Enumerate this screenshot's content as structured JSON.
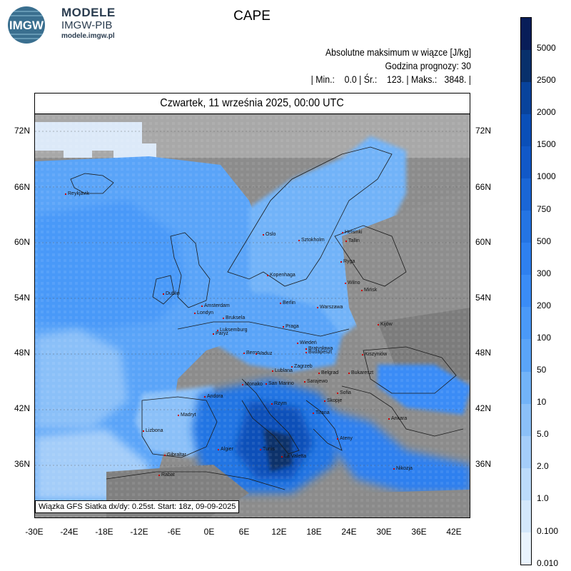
{
  "logo": {
    "badge": "IMGW",
    "name": "MODELE",
    "org": "IMGW-PIB",
    "site": "modele.imgw.pl"
  },
  "title": "CAPE",
  "meta": {
    "line1": "Absolutne maksimum w wiązce [J/kg]",
    "line2": "Godzina prognozy: 30",
    "line3": "| Min.:    0.0 | Śr.:    123. | Maks.:   3848. |"
  },
  "date": "Czwartek, 11 września 2025, 00:00 UTC",
  "footer": "Wiązka GFS Siatka dx/dy: 0.25st. Start: 18z, 09-09-2025",
  "lat_labels": [
    "72N",
    "66N",
    "60N",
    "54N",
    "48N",
    "42N",
    "36N"
  ],
  "lon_labels": [
    "-30E",
    "-24E",
    "-18E",
    "-12E",
    "-6E",
    "0E",
    "6E",
    "12E",
    "18E",
    "24E",
    "30E",
    "36E",
    "42E"
  ],
  "cities": [
    "Reykjavik",
    "Oslo",
    "Sztokholm",
    "Helsinki",
    "Tallin",
    "Ryga",
    "Kopenhaga",
    "Wilno",
    "Mińsk",
    "Dublin",
    "Amsterdam",
    "Berlin",
    "Warszawa",
    "Londyn",
    "Bruksela",
    "Luksemburg",
    "Praga",
    "Kijów",
    "Paryż",
    "Wiedeń",
    "Bratysława",
    "Budapeszt",
    "Kiszyniów",
    "Berno",
    "Vaduz",
    "Zagrzeb",
    "Lublana",
    "Belgrad",
    "Bukareszt",
    "Monako",
    "San Marino",
    "Sarajewo",
    "Sofia",
    "Skopje",
    "Andora",
    "Rzym",
    "Tirana",
    "Madryt",
    "Ankara",
    "Lizbona",
    "Ateny",
    "Algier",
    "Tunis",
    "La Valetta",
    "Gibraltar",
    "Nikozja",
    "Rabat"
  ],
  "scale": {
    "labels": [
      "5000",
      "2500",
      "2000",
      "1500",
      "1000",
      "750",
      "500",
      "300",
      "200",
      "100",
      "50",
      "10",
      "5.0",
      "2.0",
      "1.0",
      "0.100",
      "0.010"
    ],
    "colors": [
      "#081d58",
      "#08306b",
      "#08439c",
      "#0a4fb8",
      "#1158c7",
      "#1a66d6",
      "#2474e3",
      "#2e80ef",
      "#3a8cf6",
      "#4a99f8",
      "#5aa4f8",
      "#72b3f8",
      "#8bc0f8",
      "#a4cdf9",
      "#bcdbfa",
      "#d3e7fb",
      "#e9f3fd"
    ]
  }
}
